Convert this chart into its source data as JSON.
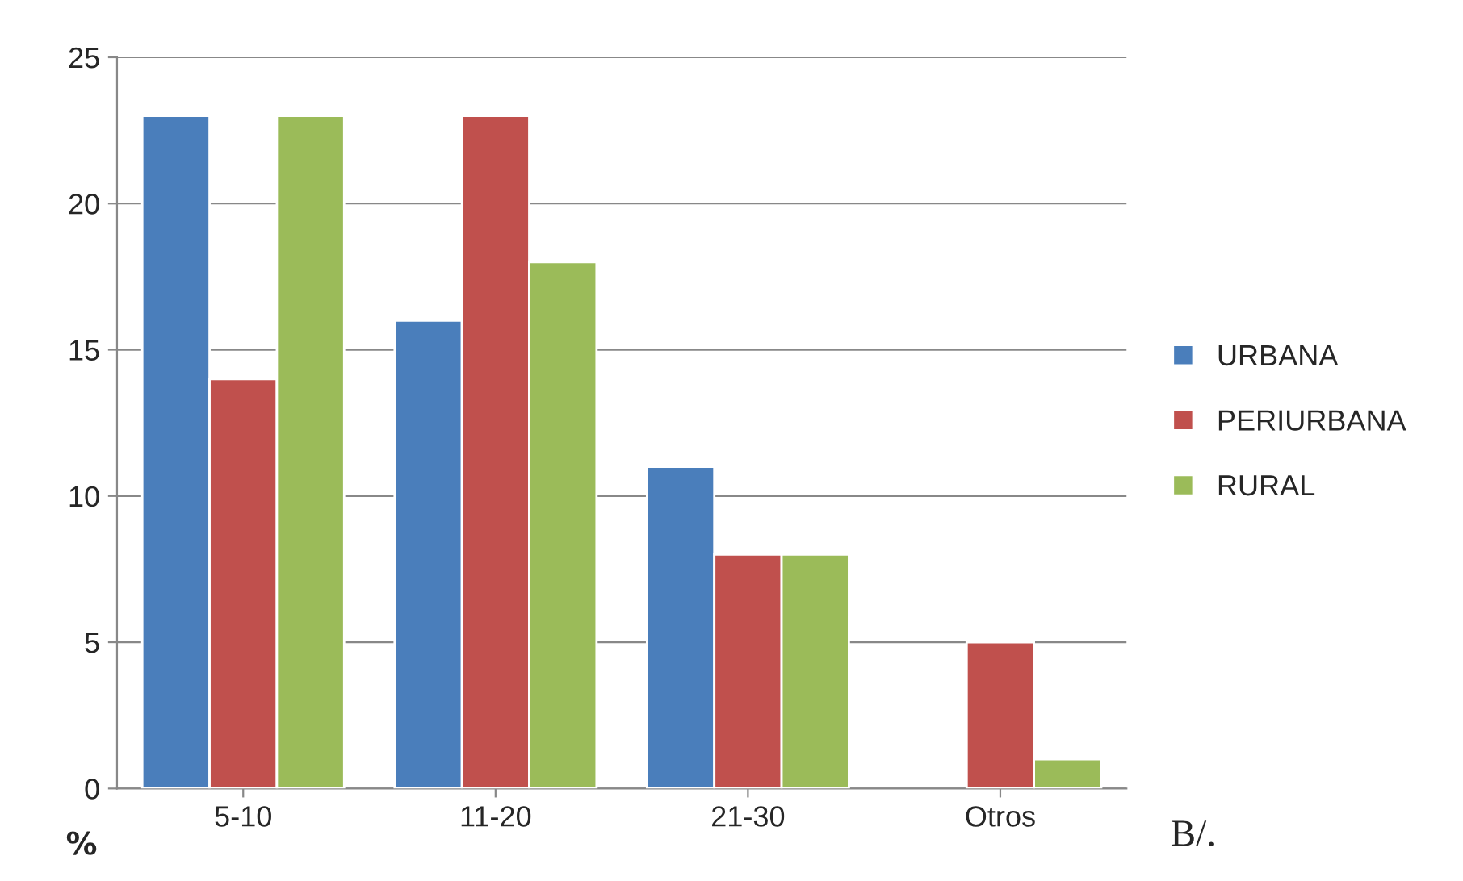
{
  "chart_data": {
    "type": "bar",
    "categories": [
      "5-10",
      "11-20",
      "21-30",
      "Otros"
    ],
    "series": [
      {
        "name": "URBANA",
        "color": "#4a7ebb",
        "values": [
          23,
          16,
          11,
          null
        ]
      },
      {
        "name": "PERIURBANA",
        "color": "#c0504d",
        "values": [
          14,
          23,
          8,
          5
        ]
      },
      {
        "name": "RURAL",
        "color": "#9bbb59",
        "values": [
          23,
          18,
          8,
          1
        ]
      }
    ],
    "ylim": [
      0,
      25
    ],
    "yticks": [
      0,
      5,
      10,
      15,
      20,
      25
    ],
    "grid": "y",
    "legend": "right",
    "annotations": [
      "%",
      "B/."
    ]
  }
}
